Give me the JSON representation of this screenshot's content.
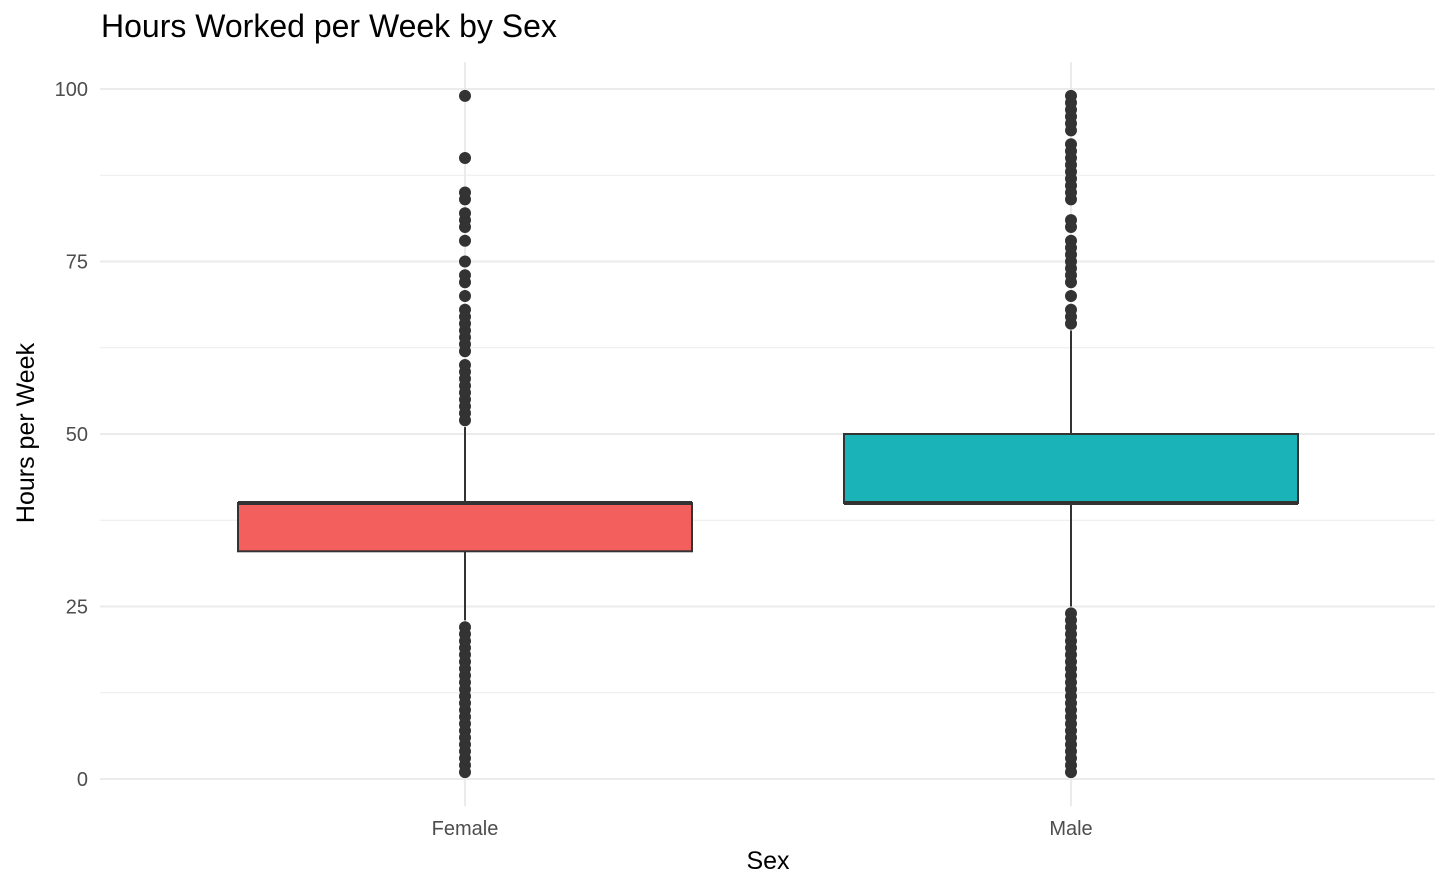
{
  "chart_data": {
    "type": "boxplot",
    "title": "Hours Worked per Week by Sex",
    "xlabel": "Sex",
    "ylabel": "Hours per Week",
    "categories": [
      "Female",
      "Male"
    ],
    "ylim": [
      0,
      100
    ],
    "y_ticks": [
      0,
      25,
      50,
      75,
      100
    ],
    "y_tick_labels": [
      "0",
      "25",
      "50",
      "75",
      "100"
    ],
    "grid": true,
    "legend": "none",
    "series": [
      {
        "category": "Female",
        "color": "#F25F5C",
        "stats": {
          "whisker_low": 23,
          "q1": 33,
          "median": 40,
          "q3": 40,
          "whisker_high": 51
        },
        "outliers": [
          1,
          2,
          3,
          4,
          5,
          6,
          7,
          8,
          9,
          10,
          11,
          12,
          13,
          14,
          15,
          16,
          17,
          18,
          19,
          20,
          21,
          22,
          52,
          53,
          54,
          55,
          56,
          57,
          58,
          59,
          60,
          62,
          63,
          64,
          65,
          66,
          67,
          68,
          70,
          72,
          73,
          75,
          78,
          80,
          81,
          82,
          84,
          85,
          90,
          99
        ]
      },
      {
        "category": "Male",
        "color": "#1AB3B7",
        "stats": {
          "whisker_low": 25,
          "q1": 40,
          "median": 40,
          "q3": 50,
          "whisker_high": 65
        },
        "outliers": [
          1,
          2,
          3,
          4,
          5,
          6,
          7,
          8,
          9,
          10,
          11,
          12,
          13,
          14,
          15,
          16,
          17,
          18,
          19,
          20,
          21,
          22,
          23,
          24,
          66,
          67,
          68,
          70,
          72,
          73,
          74,
          75,
          76,
          77,
          78,
          80,
          81,
          84,
          85,
          86,
          87,
          88,
          89,
          90,
          91,
          92,
          94,
          95,
          96,
          97,
          98,
          99
        ]
      }
    ]
  }
}
